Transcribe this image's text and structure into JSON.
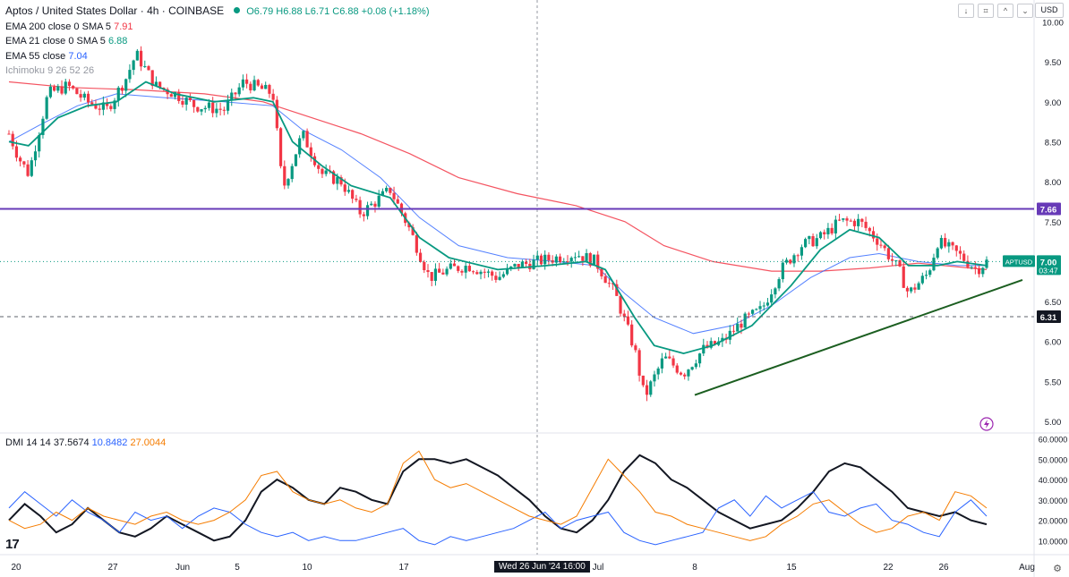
{
  "header": {
    "title": "Aptos / United States Dollar · 4h · COINBASE",
    "ohlc": "O6.79 H6.88 L6.71 C6.88 +0.08 (+1.18%)",
    "toolbar": [
      "↓",
      "⌗",
      "^",
      "⌄"
    ],
    "currency": "USD"
  },
  "indicators": [
    {
      "label": "EMA 200 close 0 SMA 5",
      "value": "7.91",
      "color": "#f23645"
    },
    {
      "label": "EMA 21 close 0 SMA 5",
      "value": "6.88",
      "color": "#089981"
    },
    {
      "label": "EMA 55 close",
      "value": "7.04",
      "color": "#2962ff"
    },
    {
      "label": "Ichimoku 9 26 52 26",
      "value": "",
      "color": "#9598a1"
    }
  ],
  "dmi": {
    "label": "DMI 14 14",
    "values": [
      {
        "value": "37.5674",
        "color": "#131722"
      },
      {
        "value": "10.8482",
        "color": "#2962ff"
      },
      {
        "value": "27.0044",
        "color": "#f57c00"
      }
    ]
  },
  "bottom": {
    "logo": "17",
    "cursor_date": "Wed 26 Jun '24   16:00"
  },
  "chart_data": [
    {
      "type": "line",
      "ylim": [
        4.9,
        10.05
      ],
      "y_ticks": [
        "10.00",
        "9.50",
        "9.00",
        "8.50",
        "8.00",
        "7.50",
        "7.00",
        "6.50",
        "6.00",
        "5.50",
        "5.00"
      ],
      "x_ticks": [
        "20",
        "27",
        "Jun",
        "5",
        "10",
        "17",
        "Jul",
        "8",
        "15",
        "22",
        "26",
        "Aug"
      ],
      "price_labels": [
        {
          "name": "resistance",
          "text": "7.66",
          "color": "#673ab7"
        },
        {
          "name": "aptusd-price",
          "text": "7.00",
          "sub": "03:47",
          "tag": "APTUSD",
          "color": "#089981"
        },
        {
          "name": "level",
          "text": "6.31",
          "color": "#131722"
        }
      ],
      "resistance": 7.66,
      "horizontal_level": 6.31,
      "trendline": [
        [
          0.0,
          5.33
        ],
        [
          1.0,
          6.77
        ]
      ],
      "price_path": [
        [
          0,
          8.6
        ],
        [
          0.01,
          8.3
        ],
        [
          0.02,
          8.1
        ],
        [
          0.04,
          9.1
        ],
        [
          0.06,
          9.2
        ],
        [
          0.08,
          9.0
        ],
        [
          0.1,
          8.9
        ],
        [
          0.12,
          9.3
        ],
        [
          0.13,
          9.6
        ],
        [
          0.15,
          9.2
        ],
        [
          0.17,
          9.1
        ],
        [
          0.19,
          8.95
        ],
        [
          0.22,
          8.9
        ],
        [
          0.24,
          9.25
        ],
        [
          0.27,
          9.1
        ],
        [
          0.28,
          7.9
        ],
        [
          0.3,
          8.6
        ],
        [
          0.32,
          8.1
        ],
        [
          0.34,
          8.0
        ],
        [
          0.36,
          7.6
        ],
        [
          0.39,
          7.9
        ],
        [
          0.41,
          7.4
        ],
        [
          0.43,
          6.8
        ],
        [
          0.45,
          6.9
        ],
        [
          0.47,
          6.95
        ],
        [
          0.5,
          6.8
        ],
        [
          0.52,
          6.95
        ],
        [
          0.54,
          7.0
        ],
        [
          0.56,
          7.05
        ],
        [
          0.58,
          7.1
        ],
        [
          0.6,
          7.0
        ],
        [
          0.62,
          6.6
        ],
        [
          0.64,
          5.9
        ],
        [
          0.65,
          5.3
        ],
        [
          0.67,
          5.8
        ],
        [
          0.69,
          5.6
        ],
        [
          0.71,
          5.9
        ],
        [
          0.73,
          6.0
        ],
        [
          0.75,
          6.25
        ],
        [
          0.77,
          6.4
        ],
        [
          0.79,
          6.9
        ],
        [
          0.81,
          7.2
        ],
        [
          0.83,
          7.3
        ],
        [
          0.85,
          7.5
        ],
        [
          0.87,
          7.5
        ],
        [
          0.89,
          7.25
        ],
        [
          0.91,
          6.9
        ],
        [
          0.92,
          6.6
        ],
        [
          0.94,
          6.85
        ],
        [
          0.95,
          7.25
        ],
        [
          0.97,
          7.1
        ],
        [
          0.99,
          6.9
        ],
        [
          1.0,
          7.0
        ]
      ],
      "ema21": [
        [
          0,
          8.5
        ],
        [
          0.02,
          8.45
        ],
        [
          0.05,
          8.8
        ],
        [
          0.08,
          8.95
        ],
        [
          0.11,
          9.0
        ],
        [
          0.14,
          9.25
        ],
        [
          0.17,
          9.1
        ],
        [
          0.21,
          9.0
        ],
        [
          0.25,
          9.05
        ],
        [
          0.27,
          9.0
        ],
        [
          0.29,
          8.5
        ],
        [
          0.32,
          8.2
        ],
        [
          0.35,
          7.95
        ],
        [
          0.39,
          7.8
        ],
        [
          0.42,
          7.3
        ],
        [
          0.45,
          7.05
        ],
        [
          0.5,
          6.9
        ],
        [
          0.55,
          6.95
        ],
        [
          0.59,
          7.0
        ],
        [
          0.61,
          6.9
        ],
        [
          0.64,
          6.3
        ],
        [
          0.66,
          5.95
        ],
        [
          0.69,
          5.85
        ],
        [
          0.72,
          5.95
        ],
        [
          0.76,
          6.2
        ],
        [
          0.8,
          6.7
        ],
        [
          0.83,
          7.15
        ],
        [
          0.86,
          7.4
        ],
        [
          0.89,
          7.3
        ],
        [
          0.92,
          6.95
        ],
        [
          0.95,
          6.95
        ],
        [
          0.97,
          7.0
        ],
        [
          1.0,
          6.95
        ]
      ],
      "ema55": [
        [
          0,
          8.5
        ],
        [
          0.03,
          8.7
        ],
        [
          0.07,
          8.95
        ],
        [
          0.11,
          9.1
        ],
        [
          0.16,
          9.05
        ],
        [
          0.22,
          9.0
        ],
        [
          0.27,
          8.95
        ],
        [
          0.3,
          8.65
        ],
        [
          0.34,
          8.4
        ],
        [
          0.38,
          8.05
        ],
        [
          0.42,
          7.55
        ],
        [
          0.46,
          7.2
        ],
        [
          0.51,
          7.05
        ],
        [
          0.56,
          7.0
        ],
        [
          0.6,
          6.95
        ],
        [
          0.63,
          6.6
        ],
        [
          0.66,
          6.3
        ],
        [
          0.7,
          6.1
        ],
        [
          0.74,
          6.2
        ],
        [
          0.78,
          6.45
        ],
        [
          0.82,
          6.8
        ],
        [
          0.86,
          7.05
        ],
        [
          0.89,
          7.1
        ],
        [
          0.93,
          7.0
        ],
        [
          0.97,
          6.95
        ],
        [
          1.0,
          6.95
        ]
      ],
      "ema200": [
        [
          0,
          9.25
        ],
        [
          0.06,
          9.18
        ],
        [
          0.13,
          9.15
        ],
        [
          0.2,
          9.1
        ],
        [
          0.26,
          9.0
        ],
        [
          0.31,
          8.8
        ],
        [
          0.36,
          8.6
        ],
        [
          0.41,
          8.35
        ],
        [
          0.46,
          8.05
        ],
        [
          0.52,
          7.85
        ],
        [
          0.58,
          7.7
        ],
        [
          0.63,
          7.5
        ],
        [
          0.67,
          7.2
        ],
        [
          0.72,
          7.0
        ],
        [
          0.78,
          6.88
        ],
        [
          0.83,
          6.88
        ],
        [
          0.88,
          6.92
        ],
        [
          0.93,
          6.98
        ],
        [
          1.0,
          6.9
        ]
      ]
    },
    {
      "type": "line",
      "ylim": [
        4,
        62
      ],
      "y_ticks": [
        "60.0000",
        "50.0000",
        "40.0000",
        "30.0000",
        "20.0000",
        "10.0000"
      ],
      "series": [
        {
          "name": "ADX",
          "color": "#131722",
          "values": [
            20,
            28,
            22,
            14,
            18,
            26,
            20,
            14,
            12,
            16,
            22,
            18,
            14,
            10,
            12,
            20,
            34,
            40,
            36,
            30,
            28,
            36,
            34,
            30,
            28,
            44,
            50,
            50,
            48,
            50,
            46,
            42,
            36,
            30,
            22,
            16,
            14,
            20,
            30,
            44,
            52,
            48,
            40,
            36,
            30,
            24,
            20,
            16,
            18,
            20,
            26,
            34,
            44,
            48,
            46,
            40,
            34,
            26,
            24,
            22,
            24,
            20,
            18
          ]
        },
        {
          "name": "+DI",
          "color": "#2962ff",
          "values": [
            26,
            34,
            28,
            22,
            30,
            24,
            20,
            14,
            24,
            20,
            22,
            16,
            22,
            26,
            24,
            18,
            14,
            12,
            14,
            10,
            12,
            10,
            10,
            12,
            14,
            16,
            10,
            8,
            12,
            10,
            12,
            14,
            16,
            20,
            24,
            16,
            20,
            22,
            24,
            14,
            10,
            8,
            10,
            12,
            14,
            26,
            30,
            22,
            32,
            26,
            30,
            34,
            24,
            22,
            26,
            28,
            20,
            18,
            14,
            12,
            24,
            30,
            22
          ]
        },
        {
          "name": "-DI",
          "color": "#f57c00",
          "values": [
            20,
            16,
            18,
            24,
            20,
            26,
            22,
            20,
            18,
            22,
            24,
            20,
            18,
            20,
            24,
            30,
            42,
            44,
            34,
            30,
            28,
            30,
            26,
            24,
            28,
            48,
            54,
            40,
            36,
            38,
            34,
            30,
            26,
            22,
            20,
            18,
            22,
            36,
            50,
            42,
            34,
            24,
            22,
            18,
            16,
            14,
            12,
            10,
            12,
            18,
            22,
            28,
            30,
            24,
            18,
            14,
            16,
            22,
            24,
            20,
            34,
            32,
            26
          ]
        }
      ]
    }
  ]
}
